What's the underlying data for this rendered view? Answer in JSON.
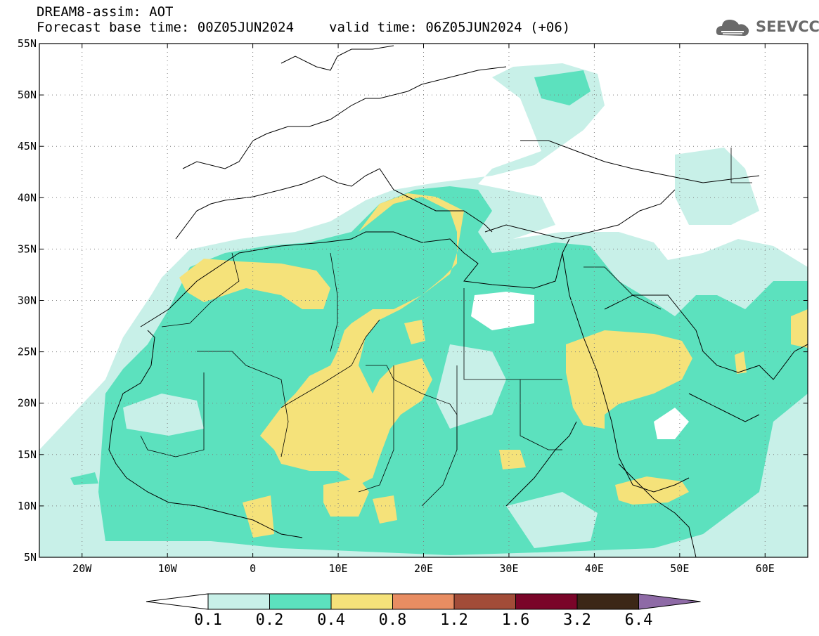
{
  "header": {
    "title": "DREAM8-assim: AOT",
    "base_time": "Forecast base time: 00Z05JUN2024",
    "valid_time": "valid time: 06Z05JUN2024 (+06)"
  },
  "logo": {
    "text": "SEEVCCC",
    "icon": "cloud-icon",
    "color": "#6a6a6a"
  },
  "map": {
    "lat_range": [
      5,
      55
    ],
    "lon_range": [
      -25,
      65
    ],
    "lat_labels": [
      "55N",
      "50N",
      "45N",
      "40N",
      "35N",
      "30N",
      "25N",
      "20N",
      "15N",
      "10N",
      "5N"
    ],
    "lon_labels": [
      "20W",
      "10W",
      "0",
      "10E",
      "20E",
      "30E",
      "40E",
      "50E",
      "60E"
    ]
  },
  "colorbar": {
    "colors": [
      "#ffffff",
      "#c8f0e8",
      "#5ce1be",
      "#f5e27a",
      "#e88d62",
      "#a24c38",
      "#7a0529",
      "#3c2717",
      "#8e6aa6"
    ],
    "labels": [
      "0.1",
      "0.2",
      "0.4",
      "0.8",
      "1.2",
      "1.6",
      "3.2",
      "6.4"
    ]
  }
}
